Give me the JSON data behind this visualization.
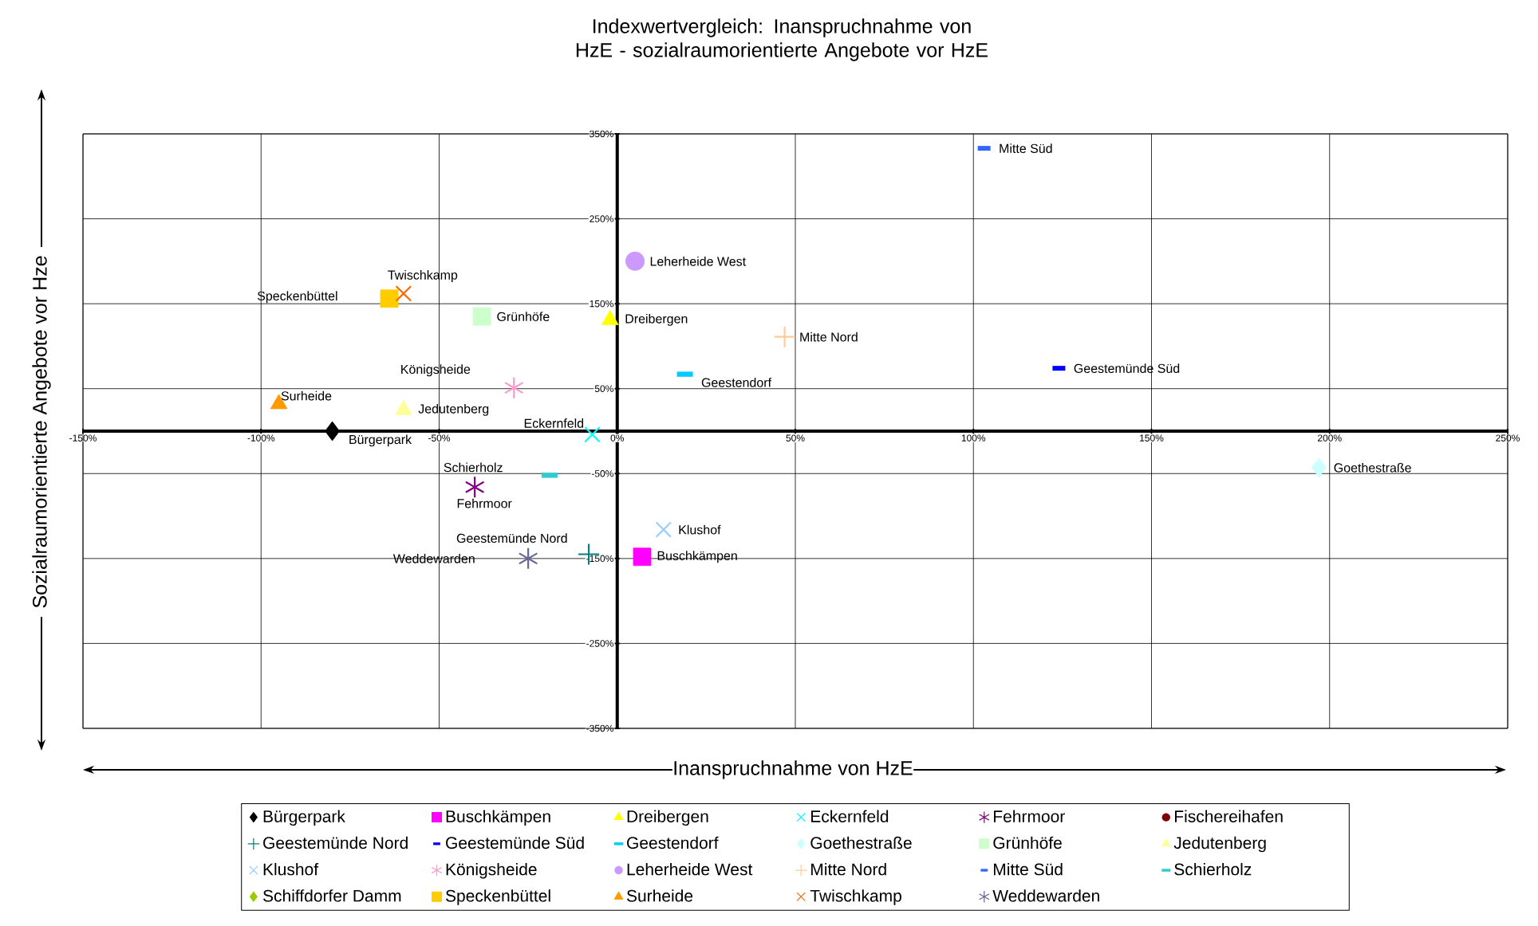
{
  "chart_data": {
    "type": "scatter",
    "title": "Indexwertvergleich: Inanspruchnahme von HzE - sozialraumorientierte Angebote vor HzE",
    "xlabel": "Inanspruchnahme von HzE",
    "ylabel": "Sozialraumorientierte Angebote vor Hze",
    "xlim": [
      -150,
      250
    ],
    "ylim": [
      -350,
      350
    ],
    "xticks": [
      {
        "value": -150,
        "label": "-150%"
      },
      {
        "value": -100,
        "label": "-100%"
      },
      {
        "value": -50,
        "label": "-50%"
      },
      {
        "value": 0,
        "label": "0%"
      },
      {
        "value": 50,
        "label": "50%"
      },
      {
        "value": 100,
        "label": "100%"
      },
      {
        "value": 150,
        "label": "150%"
      },
      {
        "value": 200,
        "label": "200%"
      },
      {
        "value": 250,
        "label": "250%"
      }
    ],
    "yticks": [
      {
        "value": -350,
        "label": "-350%"
      },
      {
        "value": -250,
        "label": "-250%"
      },
      {
        "value": -150,
        "label": "-150%"
      },
      {
        "value": -50,
        "label": "-50%"
      },
      {
        "value": 50,
        "label": "50%"
      },
      {
        "value": 150,
        "label": "150%"
      },
      {
        "value": 250,
        "label": "250%"
      },
      {
        "value": 350,
        "label": "350%"
      }
    ],
    "grid": true,
    "legend": "bottom",
    "series": [
      {
        "name": "Bürgerpark",
        "color": "#000000",
        "marker": "diamond",
        "x": [
          -80
        ],
        "values": [
          0
        ]
      },
      {
        "name": "Buschkämpen",
        "color": "#ff00ff",
        "marker": "square",
        "x": [
          7
        ],
        "values": [
          -148
        ]
      },
      {
        "name": "Dreibergen",
        "color": "#ffff00",
        "marker": "triangle",
        "x": [
          -2
        ],
        "values": [
          131
        ]
      },
      {
        "name": "Eckernfeld",
        "color": "#00ffff",
        "marker": "cross",
        "x": [
          -7
        ],
        "values": [
          -4
        ]
      },
      {
        "name": "Fehrmoor",
        "color": "#800080",
        "marker": "star",
        "x": [
          -40
        ],
        "values": [
          -66
        ]
      },
      {
        "name": "Fischereihafen",
        "color": "#800000",
        "marker": "circle",
        "x": [
          null
        ],
        "values": [
          null
        ]
      },
      {
        "name": "Geestemünde Nord",
        "color": "#008080",
        "x": [
          -8
        ],
        "values": [
          -145
        ]
      },
      {
        "name": "Geestemünde Süd",
        "color": "#0000ff",
        "x": [
          124
        ],
        "values": [
          74
        ]
      },
      {
        "name": "Geestendorf",
        "color": "#00ccff",
        "x": [
          19
        ],
        "values": [
          67
        ]
      },
      {
        "name": "Goethestraße",
        "color": "#ccffff",
        "marker": "diamond",
        "x": [
          197
        ],
        "values": [
          -43
        ]
      },
      {
        "name": "Grünhöfe",
        "color": "#ccffcc",
        "marker": "square",
        "x": [
          -38
        ],
        "values": [
          135
        ]
      },
      {
        "name": "Jedutenberg",
        "color": "#ffff99",
        "marker": "triangle",
        "x": [
          -60
        ],
        "values": [
          25
        ]
      },
      {
        "name": "Klushof",
        "color": "#99ccff",
        "marker": "cross",
        "x": [
          13
        ],
        "values": [
          -116
        ]
      },
      {
        "name": "Königsheide",
        "color": "#ff99cc",
        "marker": "star",
        "x": [
          -29
        ],
        "values": [
          51
        ]
      },
      {
        "name": "Leherheide West",
        "color": "#cc99ff",
        "marker": "circle",
        "x": [
          5
        ],
        "values": [
          200
        ]
      },
      {
        "name": "Mitte Nord",
        "color": "#ffcc99",
        "x": [
          47
        ],
        "values": [
          111
        ]
      },
      {
        "name": "Mitte Süd",
        "color": "#3366ff",
        "x": [
          103
        ],
        "values": [
          333
        ]
      },
      {
        "name": "Schierholz",
        "color": "#33cccc",
        "x": [
          -19
        ],
        "values": [
          -52
        ]
      },
      {
        "name": "Schiffdorfer Damm",
        "color": "#99cc00",
        "marker": "diamond",
        "x": [
          null
        ],
        "values": [
          null
        ]
      },
      {
        "name": "Speckenbüttel",
        "color": "#ffcc00",
        "marker": "square",
        "x": [
          -64
        ],
        "values": [
          156
        ]
      },
      {
        "name": "Surheide",
        "color": "#ff9900",
        "marker": "triangle",
        "x": [
          -95
        ],
        "values": [
          32
        ]
      },
      {
        "name": "Twischkamp",
        "color": "#ff6600",
        "marker": "cross",
        "x": [
          -60
        ],
        "values": [
          162
        ]
      },
      {
        "name": "Weddewarden",
        "color": "#666699",
        "marker": "star",
        "x": [
          -25
        ],
        "values": [
          -150
        ]
      }
    ]
  }
}
